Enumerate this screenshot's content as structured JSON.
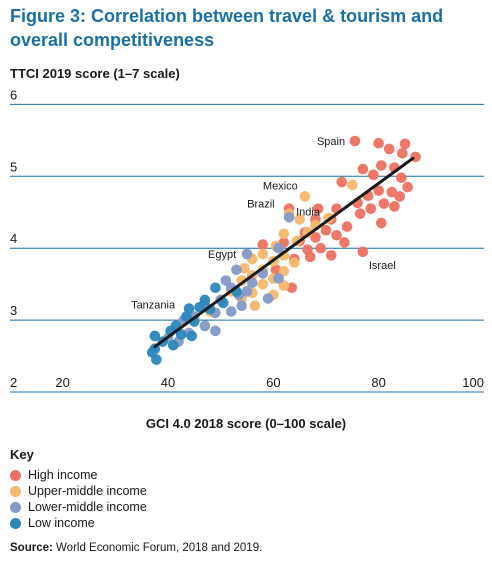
{
  "title": "Figure 3: Correlation between travel & tourism and overall competitiveness",
  "source_label": "Source:",
  "source_text": "World Economic Forum, 2018 and 2019.",
  "key_title": "Key",
  "chart_data": {
    "type": "scatter",
    "ylabel": "TTCI 2019 score (1–7 scale)",
    "xlabel": "GCI 4.0 2018 score (0–100 scale)",
    "xlim": [
      10,
      100
    ],
    "ylim": [
      2,
      6.2
    ],
    "x_ticks": [
      20,
      40,
      60,
      80,
      100
    ],
    "y_ticks": [
      2,
      3,
      4,
      5,
      6
    ],
    "grid": "horizontal",
    "legend_position": "bottom-left",
    "trendline": {
      "x": [
        37.5,
        86.5
      ],
      "y": [
        2.63,
        5.25
      ],
      "color": "#1a1a1a"
    },
    "series": [
      {
        "name": "High income",
        "color": "#ec7061",
        "points": [
          [
            75.5,
            5.49
          ],
          [
            80,
            5.46
          ],
          [
            85,
            5.45
          ],
          [
            82,
            5.38
          ],
          [
            84.5,
            5.32
          ],
          [
            87,
            5.27
          ],
          [
            77,
            5.1
          ],
          [
            80.5,
            5.15
          ],
          [
            83,
            5.12
          ],
          [
            79,
            5.02
          ],
          [
            84.3,
            4.98
          ],
          [
            73,
            4.92
          ],
          [
            85.5,
            4.85
          ],
          [
            80,
            4.8
          ],
          [
            82.5,
            4.78
          ],
          [
            78,
            4.73
          ],
          [
            84,
            4.72
          ],
          [
            76,
            4.63
          ],
          [
            81,
            4.62
          ],
          [
            83,
            4.58
          ],
          [
            78.5,
            4.55
          ],
          [
            72,
            4.55
          ],
          [
            68.5,
            4.55
          ],
          [
            63,
            4.55
          ],
          [
            76.5,
            4.48
          ],
          [
            71,
            4.4
          ],
          [
            68,
            4.4
          ],
          [
            80.5,
            4.35
          ],
          [
            74,
            4.3
          ],
          [
            70,
            4.25
          ],
          [
            66,
            4.22
          ],
          [
            72,
            4.18
          ],
          [
            68,
            4.15
          ],
          [
            65,
            4.1
          ],
          [
            73.5,
            4.08
          ],
          [
            62,
            4.08
          ],
          [
            58,
            4.05
          ],
          [
            69,
            4.0
          ],
          [
            66.5,
            3.98
          ],
          [
            77,
            3.95
          ],
          [
            71,
            3.9
          ],
          [
            67,
            3.88
          ],
          [
            64,
            3.85
          ],
          [
            60.5,
            3.7
          ],
          [
            63.5,
            3.45
          ]
        ]
      },
      {
        "name": "Upper-middle income",
        "color": "#f5b86b",
        "points": [
          [
            66,
            4.72
          ],
          [
            75,
            4.88
          ],
          [
            63,
            4.48
          ],
          [
            65,
            4.4
          ],
          [
            70.5,
            4.42
          ],
          [
            68,
            4.32
          ],
          [
            66.5,
            4.22
          ],
          [
            62,
            4.2
          ],
          [
            64.5,
            4.1
          ],
          [
            60.5,
            4.03
          ],
          [
            58,
            3.92
          ],
          [
            62,
            3.9
          ],
          [
            56,
            3.85
          ],
          [
            60,
            3.82
          ],
          [
            64,
            3.8
          ],
          [
            54.5,
            3.72
          ],
          [
            58,
            3.7
          ],
          [
            62,
            3.68
          ],
          [
            56,
            3.62
          ],
          [
            60,
            3.58
          ],
          [
            54,
            3.55
          ],
          [
            58,
            3.5
          ],
          [
            62,
            3.48
          ],
          [
            52,
            3.4
          ],
          [
            56,
            3.38
          ],
          [
            60,
            3.35
          ],
          [
            54,
            3.3
          ],
          [
            50,
            3.28
          ],
          [
            56.5,
            3.2
          ],
          [
            48,
            3.12
          ]
        ]
      },
      {
        "name": "Lower-middle income",
        "color": "#8499c9",
        "points": [
          [
            55,
            3.92
          ],
          [
            63,
            4.43
          ],
          [
            61,
            4.0
          ],
          [
            53,
            3.7
          ],
          [
            58,
            3.65
          ],
          [
            61,
            3.58
          ],
          [
            51,
            3.55
          ],
          [
            56,
            3.52
          ],
          [
            52,
            3.45
          ],
          [
            55,
            3.4
          ],
          [
            53.5,
            3.35
          ],
          [
            59,
            3.3
          ],
          [
            50,
            3.28
          ],
          [
            47,
            3.22
          ],
          [
            54,
            3.2
          ],
          [
            52,
            3.12
          ],
          [
            49,
            3.1
          ],
          [
            45,
            3.05
          ],
          [
            43,
            3.0
          ],
          [
            47,
            2.92
          ],
          [
            49,
            2.85
          ],
          [
            44,
            2.82
          ],
          [
            40,
            2.75
          ],
          [
            42,
            2.7
          ]
        ]
      },
      {
        "name": "Low income",
        "color": "#2a86ba",
        "points": [
          [
            44,
            3.16
          ],
          [
            49,
            3.45
          ],
          [
            53,
            3.4
          ],
          [
            47,
            3.28
          ],
          [
            50.5,
            3.24
          ],
          [
            46,
            3.18
          ],
          [
            48,
            3.15
          ],
          [
            43.5,
            3.05
          ],
          [
            45,
            2.98
          ],
          [
            41.5,
            2.92
          ],
          [
            40.5,
            2.85
          ],
          [
            42.5,
            2.8
          ],
          [
            37.5,
            2.78
          ],
          [
            44.5,
            2.78
          ],
          [
            39,
            2.7
          ],
          [
            41,
            2.65
          ],
          [
            37.5,
            2.6
          ],
          [
            37,
            2.55
          ],
          [
            37.8,
            2.45
          ]
        ]
      }
    ],
    "annotations": [
      {
        "text": "Spain",
        "x": 75.5,
        "y": 5.49
      },
      {
        "text": "Mexico",
        "x": 66,
        "y": 4.72
      },
      {
        "text": "Brazil",
        "x": 63,
        "y": 4.55
      },
      {
        "text": "India",
        "x": 63,
        "y": 4.43
      },
      {
        "text": "Egypt",
        "x": 55,
        "y": 3.92
      },
      {
        "text": "Israel",
        "x": 77,
        "y": 3.95
      },
      {
        "text": "Tanzania",
        "x": 44,
        "y": 3.16
      }
    ]
  }
}
